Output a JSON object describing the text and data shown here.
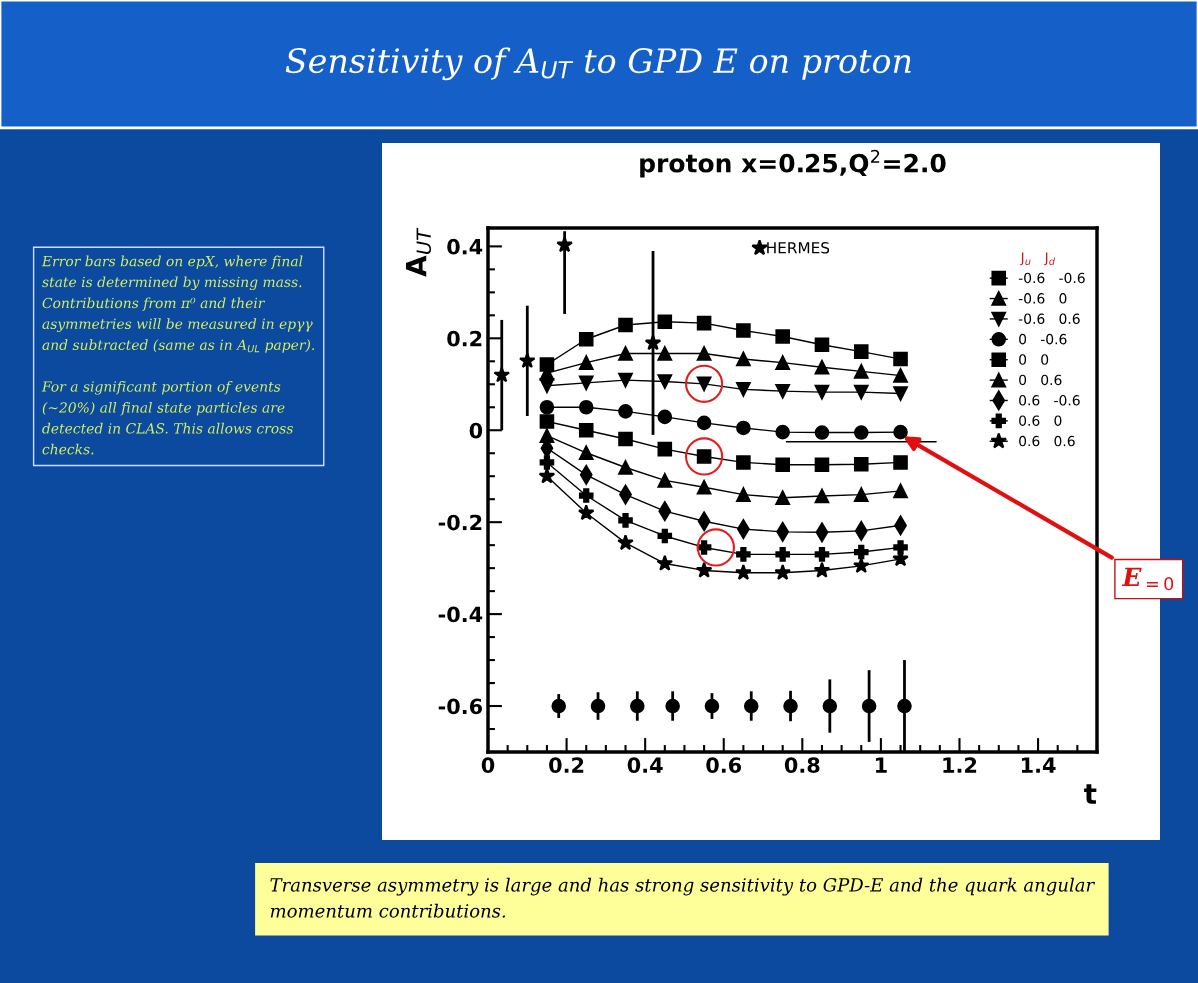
{
  "chart_data": {
    "type": "line",
    "title": "Sensitivity of A$_{UT}$ to GPD E on proton",
    "subtitle": "proton x=0.25,Q$^{2}$=2.0",
    "xlabel": "t",
    "ylabel": "A$_{UT}$",
    "legend_title": "J$_{u}$   J$_{d}$",
    "xlim": [
      0,
      1.55
    ],
    "ylim": [
      -0.7,
      0.44
    ],
    "xticks": [
      0,
      0.2,
      0.4,
      0.6,
      0.8,
      1,
      1.2,
      1.4
    ],
    "yticks": [
      -0.6,
      -0.4,
      -0.2,
      0,
      0.2,
      0.4
    ],
    "grid": false,
    "legend": "top right",
    "line_style": "solid",
    "x": [
      0.15,
      0.25,
      0.35,
      0.45,
      0.55,
      0.65,
      0.75,
      0.85,
      0.95,
      1.05
    ],
    "series": [
      {
        "name": "-0.6   -0.6",
        "color": "#000000",
        "marker": "square",
        "values": [
          0.143,
          0.198,
          0.229,
          0.236,
          0.233,
          0.217,
          0.204,
          0.186,
          0.171,
          0.155
        ]
      },
      {
        "name": "-0.6   0",
        "color": "#000000",
        "marker": "triangle",
        "values": [
          0.124,
          0.147,
          0.167,
          0.167,
          0.167,
          0.155,
          0.147,
          0.137,
          0.128,
          0.119
        ]
      },
      {
        "name": "-0.6   0.6",
        "color": "#000000",
        "marker": "triangle_down",
        "values": [
          0.097,
          0.103,
          0.109,
          0.106,
          0.101,
          0.089,
          0.085,
          0.083,
          0.083,
          0.08
        ]
      },
      {
        "name": "0   -0.6",
        "color": "#000000",
        "marker": "circle",
        "values": [
          0.05,
          0.05,
          0.041,
          0.029,
          0.016,
          0.005,
          -0.004,
          -0.005,
          -0.005,
          -0.004
        ]
      },
      {
        "name": "0   0",
        "color": "#000000",
        "marker": "square",
        "values": [
          0.019,
          0,
          -0.019,
          -0.041,
          -0.057,
          -0.07,
          -0.075,
          -0.075,
          -0.074,
          -0.07
        ]
      },
      {
        "name": "0   0.6",
        "color": "#000000",
        "marker": "triangle",
        "values": [
          -0.012,
          -0.049,
          -0.081,
          -0.109,
          -0.124,
          -0.14,
          -0.147,
          -0.143,
          -0.14,
          -0.132
        ]
      },
      {
        "name": "0.6   -0.6",
        "color": "#000000",
        "marker": "diamond",
        "values": [
          -0.039,
          -0.097,
          -0.14,
          -0.176,
          -0.198,
          -0.215,
          -0.221,
          -0.222,
          -0.219,
          -0.207
        ]
      },
      {
        "name": "0.6   0",
        "color": "#000000",
        "marker": "cross",
        "values": [
          -0.07,
          -0.142,
          -0.196,
          -0.23,
          -0.255,
          -0.27,
          -0.27,
          -0.27,
          -0.265,
          -0.255
        ]
      },
      {
        "name": "0.6   0.6",
        "color": "#000000",
        "marker": "star",
        "values": [
          -0.1,
          -0.18,
          -0.245,
          -0.29,
          -0.305,
          -0.31,
          -0.31,
          -0.305,
          -0.295,
          -0.28
        ]
      },
      {
        "type": "line",
        "color": "#000000",
        "marker": "none",
        "x": [
          0.76,
          1.14
        ],
        "values": [
          -0.025,
          -0.025
        ]
      },
      {
        "type": "scatter",
        "name": "HERMES",
        "color": "#000000",
        "marker": "star",
        "x": [
          0.035,
          0.1,
          0.195,
          0.42
        ],
        "values": [
          0.12,
          0.151,
          0.403,
          0.19
        ],
        "errors": [
          0.12,
          0.12,
          [
            0.253,
            0.433
          ],
          0.2
        ]
      },
      {
        "type": "scatter",
        "color": "#000000",
        "marker": "circle",
        "x": [
          0.18,
          0.28,
          0.38,
          0.47,
          0.57,
          0.67,
          0.77,
          0.87,
          0.97,
          1.06
        ],
        "values": [
          -0.6,
          -0.6,
          -0.6,
          -0.6,
          -0.6,
          -0.6,
          -0.6,
          -0.6,
          -0.6,
          -0.6
        ],
        "errors": [
          0.026,
          0.03,
          0.032,
          0.032,
          0.028,
          0.032,
          0.033,
          0.058,
          0.078,
          0.1
        ]
      },
      {
        "type": "scatter",
        "color": "#e02020",
        "marker": "circle",
        "x": [
          0.55,
          0.55,
          0.58
        ],
        "values": [
          0.101,
          -0.057,
          -0.255
        ]
      }
    ],
    "annotations": [
      "Error bars based on epX, where final\nstate is determined by missing mass.\nContributions from π⁰ and their\nasymmetries will be measured in epγγ\nand subtracted (same as in A$_{UL}$ paper).\n\nFor a significant portion of events\n(~20%) all final state particles are\ndetected in CLAS. This allows cross\nchecks.",
      "Transverse asymmetry is large and has strong sensitivity to GPD-E and the quark angular momentum contributions.",
      {
        "text": "E$_{=0}$",
        "x": 1.05,
        "y": -0.01
      }
    ]
  }
}
